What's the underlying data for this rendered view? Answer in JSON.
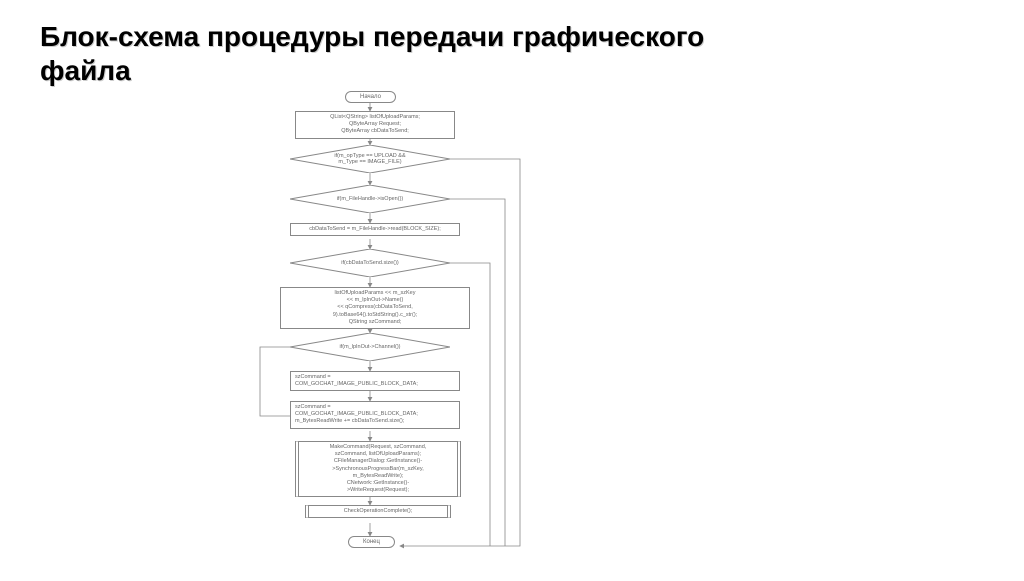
{
  "title": {
    "line1": "Блок-схема процедуры передачи графического",
    "line2": "файла"
  },
  "flowchart": {
    "type": "flowchart",
    "background_color": "#ffffff",
    "border_color": "#888888",
    "text_color": "#666666",
    "font_size": 6,
    "nodes": {
      "start": {
        "type": "terminator",
        "label": "Начало"
      },
      "init": {
        "type": "process",
        "label": "QList<QString> listOfUploadParams;\nQByteArray Request;\nQByteArray cbDataToSend;"
      },
      "cond1": {
        "type": "decision",
        "label": "if(m_opType == UPLOAD &&\nm_Type == IMAGE_FILE)"
      },
      "cond2": {
        "type": "decision",
        "label": "if(m_FileHandle->isOpen())"
      },
      "read": {
        "type": "process",
        "label": "cbDataToSend = m_FileHandle->read(BLOCK_SIZE);"
      },
      "cond3": {
        "type": "decision",
        "label": "if(cbDataToSend.size())"
      },
      "params": {
        "type": "process",
        "label": "listOfUploadParams << m_szKey\n<< m_lpInOut->Name()\n<< qCompress(cbDataToSend,\n9).toBase64().toStdString().c_str();\nQString szCommand;"
      },
      "cond4": {
        "type": "decision",
        "label": "if(m_lpInOut->Channel())"
      },
      "cmd1": {
        "type": "process",
        "label": "szCommand =\nCOM_GOCHAT_IMAGE_PUBLIC_BLOCK_DATA;"
      },
      "cmd2": {
        "type": "process",
        "label": "szCommand =\nCOM_GOCHAT_IMAGE_PUBLIC_BLOCK_DATA;\nm_BytesReadWrite += cbDataToSend.size();"
      },
      "make": {
        "type": "predefined",
        "label": "MakeCommand(Request, szCommand,\nszCommand, listOfUploadParams);\nCFileManagerDialog::GetInstance()-\n>SynchronousProgressBar(m_szKey,\nm_BytesReadWrite);\nCNetwork::GetInstance()-\n>WriteRequest(Request);"
      },
      "check": {
        "type": "predefined",
        "label": "CheckOperationComplete();"
      },
      "end": {
        "type": "terminator",
        "label": "Конец"
      }
    },
    "edges": [
      {
        "from": "start",
        "to": "init"
      },
      {
        "from": "init",
        "to": "cond1"
      },
      {
        "from": "cond1",
        "to": "cond2",
        "label": ""
      },
      {
        "from": "cond1",
        "to": "end",
        "label": "",
        "route": "right-far"
      },
      {
        "from": "cond2",
        "to": "read"
      },
      {
        "from": "cond2",
        "to": "end",
        "route": "right-mid"
      },
      {
        "from": "read",
        "to": "cond3"
      },
      {
        "from": "cond3",
        "to": "params"
      },
      {
        "from": "cond3",
        "to": "end",
        "route": "right-inner"
      },
      {
        "from": "params",
        "to": "cond4"
      },
      {
        "from": "cond4",
        "to": "cmd1"
      },
      {
        "from": "cond4",
        "to": "cmd2",
        "route": "left"
      },
      {
        "from": "cmd1",
        "to": "cmd2"
      },
      {
        "from": "cmd2",
        "to": "make"
      },
      {
        "from": "make",
        "to": "check"
      },
      {
        "from": "check",
        "to": "end"
      }
    ]
  }
}
